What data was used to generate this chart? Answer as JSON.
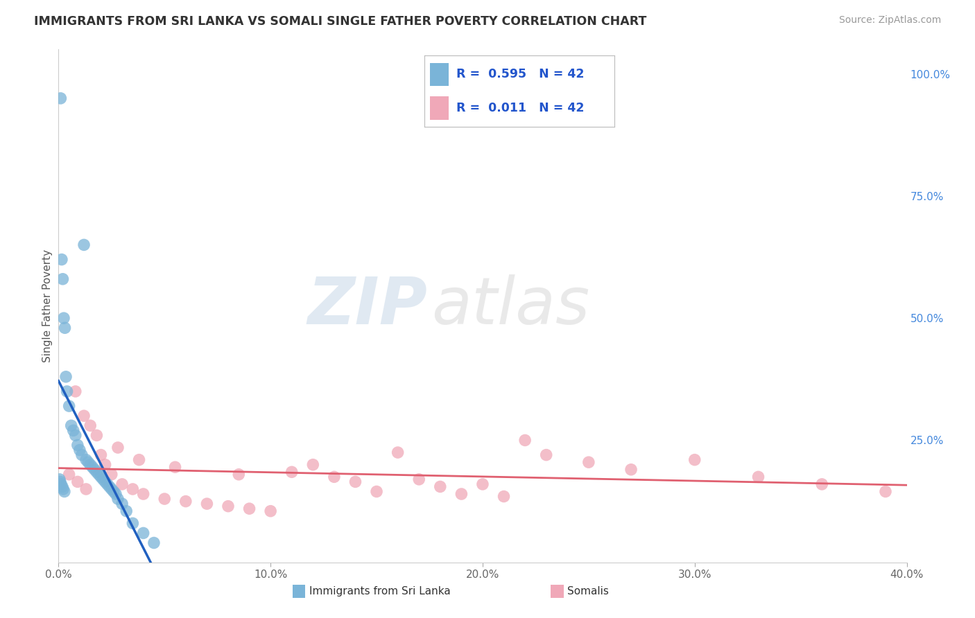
{
  "title": "IMMIGRANTS FROM SRI LANKA VS SOMALI SINGLE FATHER POVERTY CORRELATION CHART",
  "source": "Source: ZipAtlas.com",
  "ylabel": "Single Father Poverty",
  "x_tick_labels": [
    "0.0%",
    "10.0%",
    "20.0%",
    "30.0%",
    "40.0%"
  ],
  "x_tick_vals": [
    0.0,
    10.0,
    20.0,
    30.0,
    40.0
  ],
  "y_tick_labels_right": [
    "100.0%",
    "75.0%",
    "50.0%",
    "25.0%",
    ""
  ],
  "y_tick_vals": [
    100.0,
    75.0,
    50.0,
    25.0,
    0.0
  ],
  "r1": 0.595,
  "r2": 0.011,
  "n1": 42,
  "n2": 42,
  "watermark_zip": "ZIP",
  "watermark_atlas": "atlas",
  "background_color": "#ffffff",
  "grid_color": "#cccccc",
  "sri_lanka_color": "#7ab4d8",
  "somali_color": "#f0a8b8",
  "sri_lanka_trend_color": "#2060c0",
  "somali_trend_color": "#e06070",
  "sri_lanka_x": [
    0.05,
    0.08,
    0.1,
    0.12,
    0.15,
    0.18,
    0.2,
    0.22,
    0.25,
    0.28,
    0.3,
    0.35,
    0.4,
    0.5,
    0.6,
    0.7,
    0.8,
    0.9,
    1.0,
    1.1,
    1.2,
    1.3,
    1.4,
    1.5,
    1.6,
    1.7,
    1.8,
    1.9,
    2.0,
    2.1,
    2.2,
    2.3,
    2.4,
    2.5,
    2.6,
    2.7,
    2.8,
    3.0,
    3.2,
    3.5,
    4.0,
    4.5
  ],
  "sri_lanka_y": [
    17.0,
    16.5,
    95.0,
    16.0,
    62.0,
    15.5,
    58.0,
    15.0,
    50.0,
    14.5,
    48.0,
    38.0,
    35.0,
    32.0,
    28.0,
    27.0,
    26.0,
    24.0,
    23.0,
    22.0,
    65.0,
    21.0,
    20.5,
    20.0,
    19.5,
    19.0,
    18.5,
    18.0,
    17.5,
    17.0,
    16.5,
    16.0,
    15.5,
    15.0,
    14.5,
    14.0,
    13.0,
    12.0,
    10.5,
    8.0,
    6.0,
    4.0
  ],
  "somali_x": [
    0.5,
    0.8,
    0.9,
    1.2,
    1.3,
    1.5,
    1.8,
    2.0,
    2.2,
    2.5,
    2.8,
    3.0,
    3.5,
    3.8,
    4.0,
    5.0,
    5.5,
    6.0,
    7.0,
    8.0,
    8.5,
    9.0,
    10.0,
    11.0,
    12.0,
    13.0,
    14.0,
    15.0,
    16.0,
    17.0,
    18.0,
    19.0,
    20.0,
    21.0,
    22.0,
    23.0,
    25.0,
    27.0,
    30.0,
    33.0,
    36.0,
    39.0
  ],
  "somali_y": [
    18.0,
    35.0,
    16.5,
    30.0,
    15.0,
    28.0,
    26.0,
    22.0,
    20.0,
    18.0,
    23.5,
    16.0,
    15.0,
    21.0,
    14.0,
    13.0,
    19.5,
    12.5,
    12.0,
    11.5,
    18.0,
    11.0,
    10.5,
    18.5,
    20.0,
    17.5,
    16.5,
    14.5,
    22.5,
    17.0,
    15.5,
    14.0,
    16.0,
    13.5,
    25.0,
    22.0,
    20.5,
    19.0,
    21.0,
    17.5,
    16.0,
    14.5
  ]
}
